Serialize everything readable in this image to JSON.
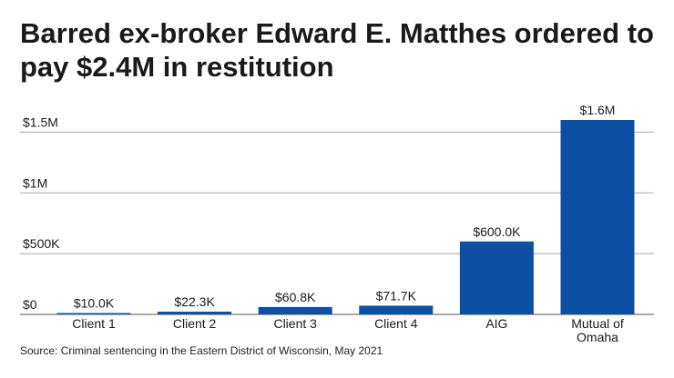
{
  "chart_data": {
    "type": "bar",
    "title": "Barred ex-broker Edward E. Matthes ordered to pay $2.4M in restitution",
    "categories": [
      "Client 1",
      "Client 2",
      "Client 3",
      "Client 4",
      "AIG",
      "Mutual of Omaha"
    ],
    "category_lines": [
      [
        "Client 1"
      ],
      [
        "Client 2"
      ],
      [
        "Client 3"
      ],
      [
        "Client 4"
      ],
      [
        "AIG"
      ],
      [
        "Mutual of",
        "Omaha"
      ]
    ],
    "values": [
      10000,
      22300,
      60800,
      71700,
      600000,
      1600000
    ],
    "data_labels": [
      "$10.0K",
      "$22.3K",
      "$60.8K",
      "$71.7K",
      "$600.0K",
      "$1.6M"
    ],
    "yticks": [
      0,
      500000,
      1000000,
      1500000
    ],
    "ytick_labels": [
      "$0",
      "$500K",
      "$1M",
      "$1.5M"
    ],
    "ylim": [
      0,
      1600000
    ],
    "xlabel": "",
    "ylabel": "",
    "grid": true,
    "bar_color": "#0b4ea2",
    "grid_color": "#aaaaaa"
  },
  "source": "Source: Criminal sentencing in the Eastern District of Wisconsin, May 2021"
}
